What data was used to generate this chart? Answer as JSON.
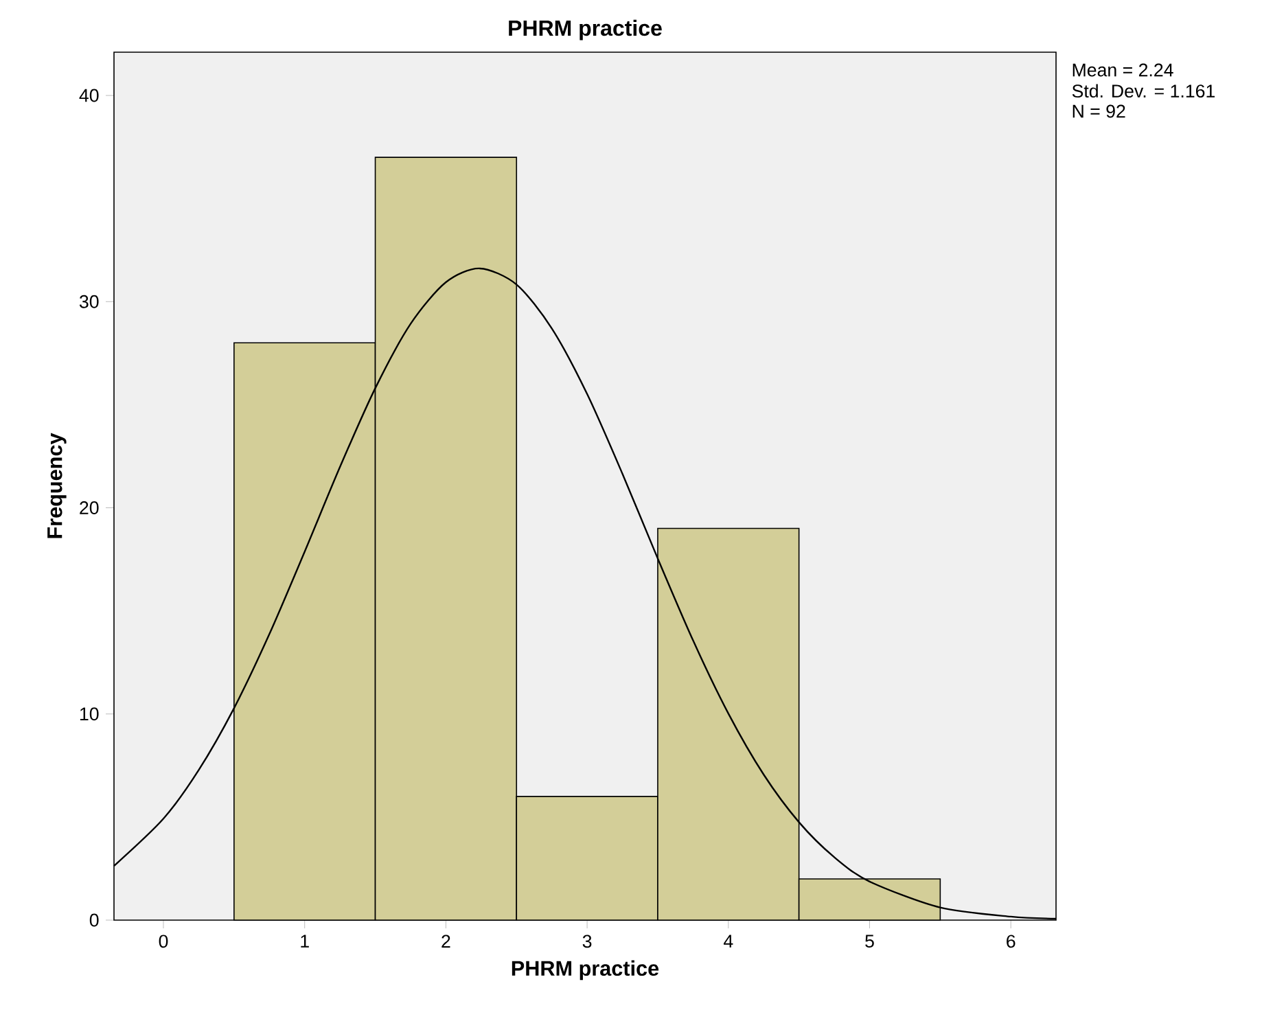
{
  "chart_data": {
    "type": "histogram",
    "title": "PHRM practice",
    "xlabel": "PHRM practice",
    "ylabel": "Frequency",
    "annotations": [
      "Mean = 2.24",
      "Std. Dev. = 1.161",
      "N = 92"
    ],
    "xlim": [
      -0.35,
      6.32
    ],
    "ylim": [
      0,
      42.1
    ],
    "xticks": [
      0,
      1,
      2,
      3,
      4,
      5,
      6
    ],
    "yticks": [
      0,
      10,
      20,
      30,
      40
    ],
    "series": [
      {
        "color": "#d3ce98",
        "bins": [
          0.5,
          1.5,
          2.5,
          3.5,
          4.5,
          5.5
        ],
        "values": [
          28,
          37,
          6,
          19,
          2
        ]
      },
      {
        "type": "line",
        "color": "#000000",
        "x": [
          -0.35,
          0,
          0.25,
          0.5,
          0.75,
          1,
          1.25,
          1.5,
          1.75,
          2,
          2.24,
          2.5,
          2.75,
          3,
          3.25,
          3.5,
          3.75,
          4,
          4.25,
          4.5,
          4.75,
          5,
          5.5,
          6,
          6.32
        ],
        "values": [
          2.63,
          4.92,
          7.28,
          10.28,
          13.87,
          17.87,
          21.98,
          25.8,
          28.92,
          30.94,
          31.61,
          30.83,
          28.7,
          25.52,
          21.65,
          17.54,
          13.57,
          10.02,
          7.06,
          4.75,
          3.05,
          1.87,
          0.61,
          0.17,
          0.07
        ]
      }
    ]
  }
}
